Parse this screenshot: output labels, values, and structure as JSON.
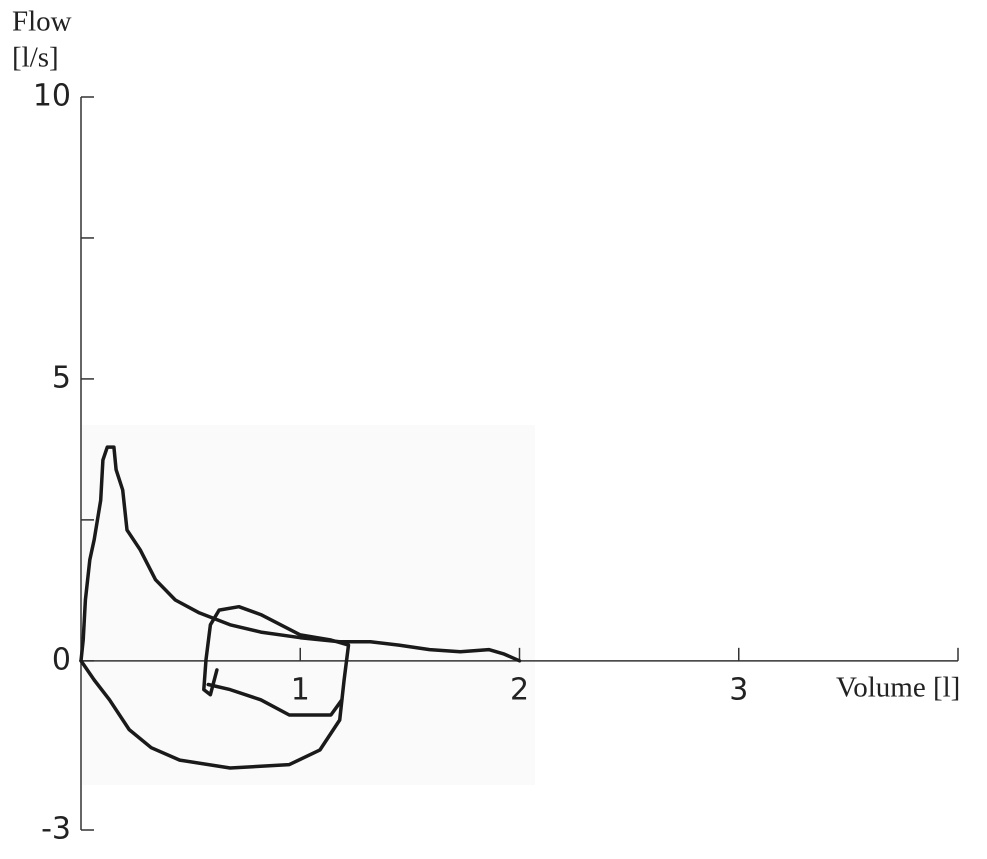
{
  "chart_data": {
    "type": "line",
    "ylabel": "Flow",
    "yunit": "[l/s]",
    "xlabel": "Volume [l]",
    "xlim": [
      0,
      4
    ],
    "xticks": [
      1,
      2,
      3
    ],
    "ylim": [
      -3,
      10
    ],
    "yticks": [
      -3,
      0,
      5,
      10
    ],
    "yminorticks": [
      2.5,
      7.5
    ],
    "series": [
      {
        "color": "#1a1a1a",
        "x": [
          0,
          0.01,
          0.02,
          0.04,
          0.06,
          0.09,
          0.1,
          0.12,
          0.15,
          0.16,
          0.19,
          0.21,
          0.27,
          0.34,
          0.43,
          0.54,
          0.68,
          0.82,
          1.0,
          1.18,
          1.32,
          1.45,
          1.59,
          1.73,
          1.86,
          1.93,
          2.0
        ],
        "values": [
          0,
          0.37,
          1.08,
          1.79,
          2.15,
          2.85,
          3.56,
          3.79,
          3.79,
          3.39,
          3.03,
          2.32,
          1.97,
          1.44,
          1.08,
          0.85,
          0.64,
          0.51,
          0.41,
          0.34,
          0.34,
          0.28,
          0.2,
          0.16,
          0.2,
          0.12,
          0
        ]
      },
      {
        "color": "#1a1a1a",
        "x": [
          0,
          0.06,
          0.13,
          0.22,
          0.32,
          0.45,
          0.68,
          0.95,
          1.09,
          1.18,
          1.2,
          1.22,
          1.14,
          1.0,
          0.82,
          0.72,
          0.63,
          0.59,
          0.57,
          0.56,
          0.59,
          0.62,
          null,
          0.58,
          0.68,
          0.82,
          0.95,
          1.14,
          1.19
        ],
        "values": [
          0,
          -0.34,
          -0.69,
          -1.22,
          -1.54,
          -1.76,
          -1.9,
          -1.84,
          -1.58,
          -1.05,
          -0.34,
          0.28,
          0.37,
          0.46,
          0.82,
          0.96,
          0.9,
          0.64,
          0.02,
          -0.51,
          -0.6,
          -0.16,
          null,
          -0.42,
          -0.51,
          -0.69,
          -0.96,
          -0.96,
          -0.69
        ]
      }
    ]
  }
}
